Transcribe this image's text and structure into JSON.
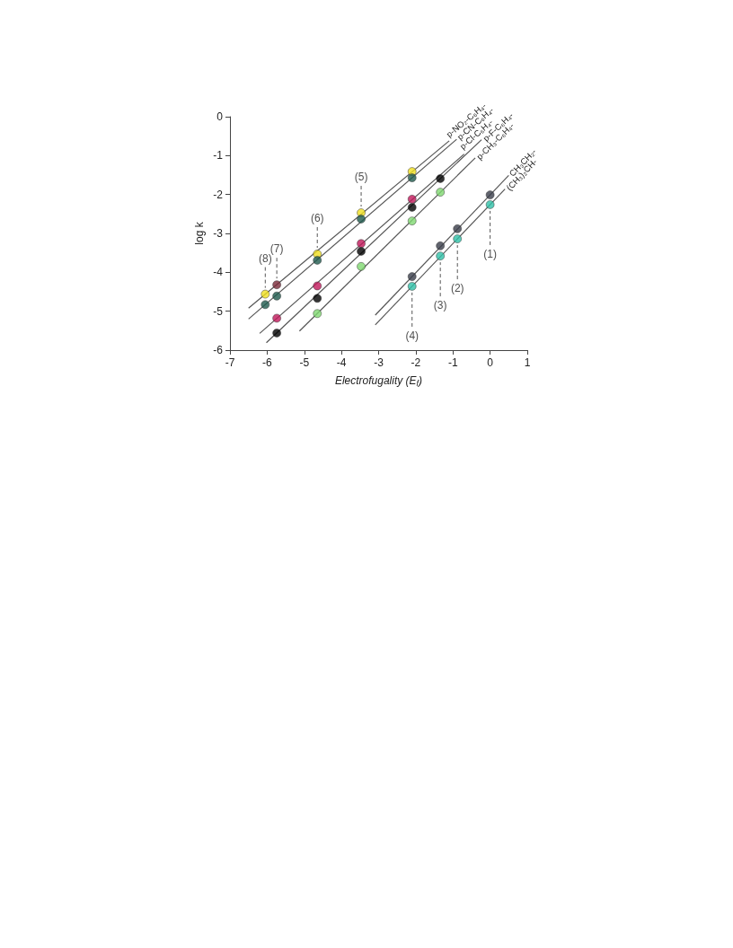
{
  "chart_data": {
    "type": "scatter",
    "xlabel": "Electrofugality (E$_{f}$)",
    "ylabel": "log k",
    "xlim": [
      -7,
      1
    ],
    "xticks": [
      -7,
      -6,
      -5,
      -4,
      -3,
      -2,
      -1,
      0,
      1
    ],
    "ylim": [
      -6,
      0
    ],
    "yticks": [
      -6,
      -5,
      -4,
      -3,
      -2,
      -1,
      0
    ],
    "grid": false,
    "legend": false,
    "marker": "circle",
    "series": [
      {
        "color": "#f0e020",
        "colors": [
          null,
          "#7a2a3a",
          null,
          null,
          null
        ],
        "x": [
          -6.05,
          -5.74,
          -4.65,
          -3.47,
          -2.1
        ],
        "values": [
          -4.56,
          -4.32,
          -3.53,
          -2.47,
          -1.41
        ]
      },
      {
        "color": "#1f5a4e",
        "x": [
          -6.05,
          -5.74,
          -4.65,
          -3.47,
          -2.1
        ],
        "values": [
          -4.83,
          -4.61,
          -3.69,
          -2.63,
          -1.57
        ]
      },
      {
        "color": "#c0185a",
        "x": [
          -5.74,
          -4.65,
          -3.47,
          -2.1
        ],
        "values": [
          -5.18,
          -4.35,
          -3.26,
          -2.12
        ]
      },
      {
        "color": "#000000",
        "x": [
          -5.74,
          -4.65,
          -3.47,
          -2.1,
          -1.34
        ],
        "values": [
          -5.56,
          -4.67,
          -3.46,
          -2.33,
          -1.59
        ]
      },
      {
        "color": "#80d870",
        "x": [
          -4.65,
          -3.47,
          -2.1,
          -1.34
        ],
        "values": [
          -5.06,
          -3.85,
          -2.68,
          -1.94
        ]
      },
      {
        "color": "#3a3d4a",
        "x": [
          -2.1,
          -1.34,
          -0.88,
          0
        ],
        "values": [
          -4.11,
          -3.32,
          -2.88,
          -2.01
        ]
      },
      {
        "color": "#30c0a8",
        "x": [
          -2.1,
          -1.34,
          -0.88,
          0
        ],
        "values": [
          -4.36,
          -3.58,
          -3.14,
          -2.26
        ]
      },
      {
        "type": "line",
        "marker": "none",
        "name": "p-NO₂-C₆H₄-",
        "color": "#555555",
        "x": [
          -6.5,
          -1.1
        ],
        "values": [
          -4.92,
          -0.62
        ]
      },
      {
        "type": "line",
        "marker": "none",
        "name": "p-CN-C₆H₄-",
        "color": "#555555",
        "x": [
          -6.5,
          -0.9
        ],
        "values": [
          -5.2,
          -0.58
        ]
      },
      {
        "type": "line",
        "marker": "none",
        "name": "p-Cl-C₆H₄-",
        "color": "#555555",
        "x": [
          -6.2,
          -0.7
        ],
        "values": [
          -5.57,
          -0.96
        ]
      },
      {
        "type": "line",
        "marker": "none",
        "name": "p-F-C₆H₄-",
        "color": "#555555",
        "x": [
          -6.02,
          -0.23
        ],
        "values": [
          -5.81,
          -0.59
        ]
      },
      {
        "type": "line",
        "marker": "none",
        "name": "p-CH₃-C₆H₄-",
        "color": "#555555",
        "x": [
          -5.13,
          -0.4
        ],
        "values": [
          -5.51,
          -1.06
        ]
      },
      {
        "type": "line",
        "marker": "none",
        "name": "CH₃CH₂-",
        "color": "#555555",
        "x": [
          -3.09,
          0.5
        ],
        "values": [
          -5.1,
          -1.51
        ]
      },
      {
        "type": "line",
        "marker": "none",
        "name": "(CH₃)₂CH-",
        "color": "#555555",
        "x": [
          -3.09,
          0.4
        ],
        "values": [
          -5.35,
          -1.86
        ]
      }
    ],
    "annotations": [
      {
        "text": "(1)",
        "x": 0,
        "y": -2.26
      },
      {
        "text": "(2)",
        "x": -0.88,
        "y": -3.14
      },
      {
        "text": "(3)",
        "x": -1.34,
        "y": -3.58
      },
      {
        "text": "(4)",
        "x": -2.1,
        "y": -4.36
      },
      {
        "text": "(5)",
        "x": -3.47,
        "y": -2.47
      },
      {
        "text": "(6)",
        "x": -4.65,
        "y": -3.53
      },
      {
        "text": "(7)",
        "x": -5.74,
        "y": -4.32
      },
      {
        "text": "(8)",
        "x": -6.05,
        "y": -4.56
      }
    ]
  }
}
